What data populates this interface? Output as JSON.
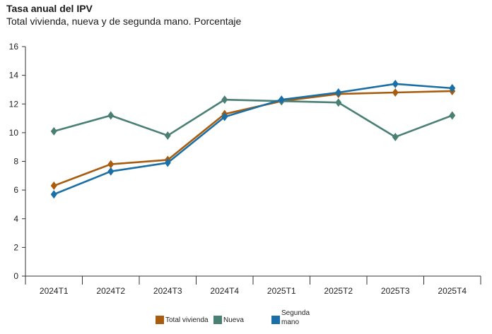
{
  "title": "Tasa anual del IPV",
  "subtitle": "Total vivienda, nueva y de segunda mano. Porcentaje",
  "chart_data": {
    "type": "line",
    "categories": [
      "2024T1",
      "2024T2",
      "2024T3",
      "2024T4",
      "2025T1",
      "2025T2",
      "2025T3",
      "2025T4"
    ],
    "ylim": [
      0,
      16
    ],
    "yticks": [
      0,
      2,
      4,
      6,
      8,
      10,
      12,
      14,
      16
    ],
    "grid": false,
    "legend": "bottom",
    "series": [
      {
        "name": "Total vivienda",
        "color": "#a85c0f",
        "values": [
          6.3,
          7.8,
          8.1,
          11.3,
          12.2,
          12.7,
          12.8,
          12.9
        ]
      },
      {
        "name": "Nueva",
        "color": "#4a7f74",
        "values": [
          10.1,
          11.2,
          9.8,
          12.3,
          12.2,
          12.1,
          9.7,
          11.2
        ]
      },
      {
        "name": "Segunda mano",
        "legend_lines": [
          "Segunda",
          "mano"
        ],
        "color": "#1a6fa6",
        "values": [
          5.7,
          7.3,
          7.9,
          11.1,
          12.3,
          12.8,
          13.4,
          13.1
        ]
      }
    ]
  }
}
